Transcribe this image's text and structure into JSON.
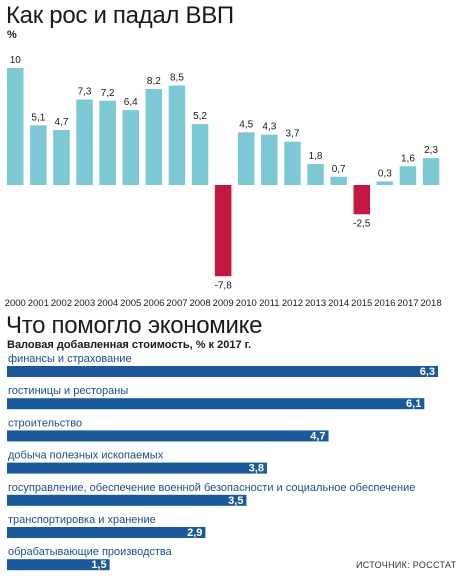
{
  "chart_data": [
    {
      "type": "bar",
      "title": "Как рос и падал ВВП",
      "ylabel": "%",
      "categories": [
        "2000",
        "2001",
        "2002",
        "2003",
        "2004",
        "2005",
        "2006",
        "2007",
        "2008",
        "2009",
        "2010",
        "2011",
        "2012",
        "2013",
        "2014",
        "2015",
        "2016",
        "2017",
        "2018"
      ],
      "values": [
        10,
        5.1,
        4.7,
        7.3,
        7.2,
        6.4,
        8.2,
        8.5,
        5.2,
        -7.8,
        4.5,
        4.3,
        3.7,
        1.8,
        0.7,
        -2.5,
        0.3,
        1.6,
        2.3
      ],
      "value_labels": [
        "10",
        "5,1",
        "4,7",
        "7,3",
        "7,2",
        "6,4",
        "8,2",
        "8,5",
        "5,2",
        "-7,8",
        "4,5",
        "4,3",
        "3,7",
        "1,8",
        "0,7",
        "-2,5",
        "0,3",
        "1,6",
        "2,3"
      ],
      "colors": {
        "positive": "#7cc8d3",
        "negative": "#c3183f"
      },
      "ylim": [
        -7.8,
        10
      ]
    },
    {
      "type": "bar",
      "orientation": "horizontal",
      "title": "Что помогло экономике",
      "subtitle": "Валовая добавленная стоимость, % к 2017 г.",
      "categories": [
        "финансы и страхование",
        "гостиницы и рестораны",
        "строительство",
        "добыча полезных ископаемых",
        "госуправление, обеспечение военной безопасности и социальное обеспечение",
        "транспортировка и хранение",
        "обрабатывающие производства"
      ],
      "values": [
        6.3,
        6.1,
        4.7,
        3.8,
        3.5,
        2.9,
        1.5
      ],
      "value_labels": [
        "6,3",
        "6,1",
        "4,7",
        "3,8",
        "3,5",
        "2,9",
        "1,5"
      ],
      "colors": {
        "bar": "#1a5a9a",
        "label": "#1a4f8a"
      },
      "source": "ИСТОЧНИК: РОССТАТ"
    }
  ]
}
